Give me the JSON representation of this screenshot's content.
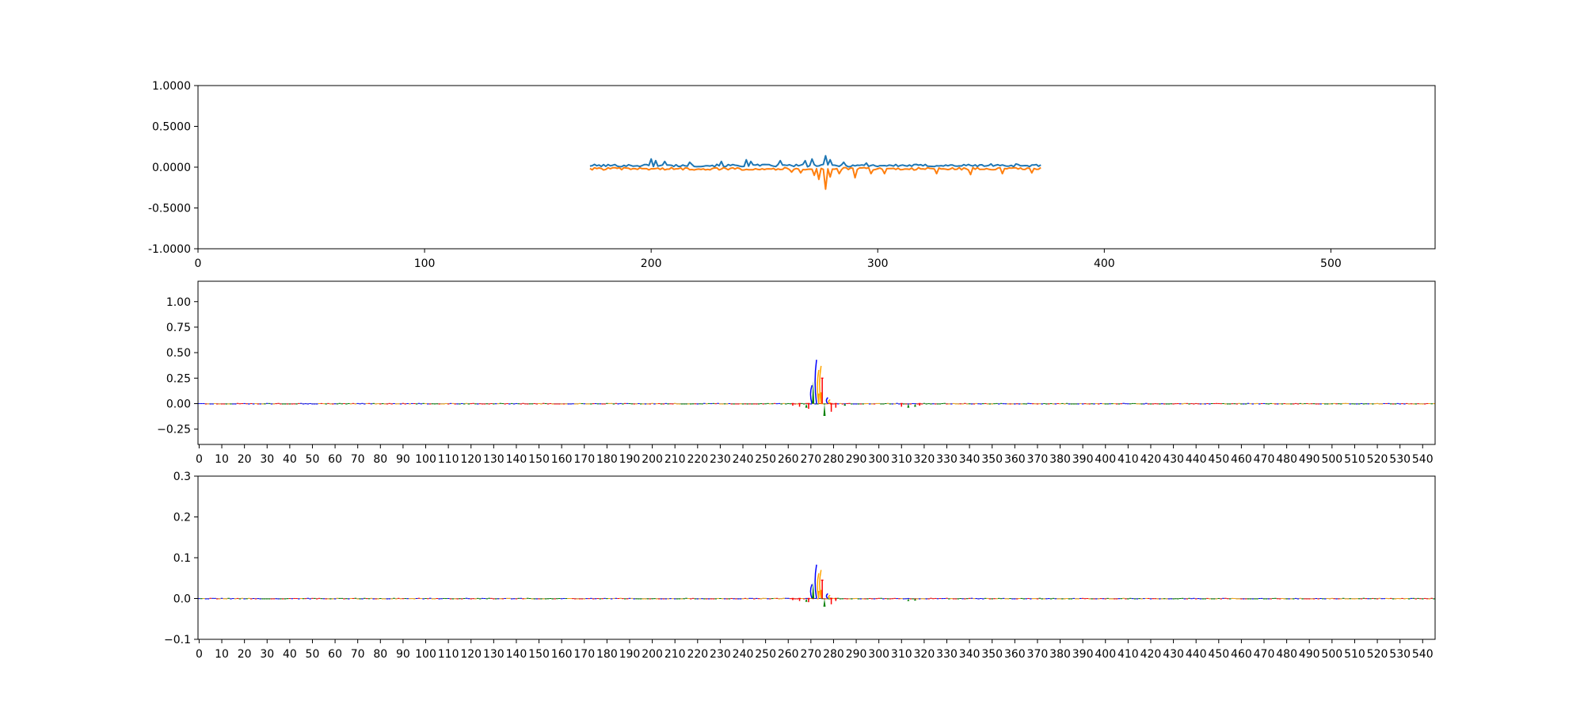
{
  "colors": {
    "series_positive": "#1f77b4",
    "series_negative": "#ff7f0e",
    "base_A": "#008000",
    "base_C": "#0000ff",
    "base_G": "#ffa500",
    "base_T": "#ff0000",
    "axis": "#000000"
  },
  "chart_data": [
    {
      "type": "line",
      "xlim": [
        0,
        546
      ],
      "ylim": [
        -1.0,
        1.0
      ],
      "x_ticks": [
        0,
        100,
        200,
        300,
        400,
        500
      ],
      "y_ticks": [
        -1.0,
        -0.5,
        0.0,
        0.5,
        1.0
      ],
      "x_tick_labels": [
        "0",
        "100",
        "200",
        "300",
        "400",
        "500"
      ],
      "y_tick_labels": [
        "-1.0000",
        "-0.5000",
        "0.0000",
        "0.5000",
        "1.0000"
      ],
      "grid": false,
      "series": [
        {
          "color": "#1f77b4",
          "x_start": 173,
          "x_end": 372,
          "baseline": 0.02,
          "noise": 0.015,
          "peaks": [
            [
              200,
              0.1
            ],
            [
              202,
              0.08
            ],
            [
              206,
              0.07
            ],
            [
              217,
              0.06
            ],
            [
              231,
              0.07
            ],
            [
              242,
              0.09
            ],
            [
              244,
              0.07
            ],
            [
              257,
              0.08
            ],
            [
              268,
              0.08
            ],
            [
              271,
              0.1
            ],
            [
              277,
              0.14
            ],
            [
              279,
              0.09
            ],
            [
              285,
              0.06
            ],
            [
              295,
              0.05
            ],
            [
              350,
              0.04
            ],
            [
              361,
              0.04
            ]
          ]
        },
        {
          "color": "#ff7f0e",
          "x_start": 173,
          "x_end": 372,
          "baseline": -0.02,
          "noise": 0.015,
          "peaks": [
            [
              262,
              -0.06
            ],
            [
              266,
              -0.07
            ],
            [
              272,
              -0.1
            ],
            [
              274,
              -0.15
            ],
            [
              277,
              -0.27
            ],
            [
              279,
              -0.12
            ],
            [
              283,
              -0.08
            ],
            [
              290,
              -0.13
            ],
            [
              297,
              -0.08
            ],
            [
              303,
              -0.08
            ],
            [
              326,
              -0.08
            ],
            [
              341,
              -0.09
            ],
            [
              355,
              -0.08
            ],
            [
              368,
              -0.07
            ]
          ]
        }
      ]
    },
    {
      "type": "bar",
      "subtype": "sequence-logo",
      "xlim": [
        -0.5,
        545.5
      ],
      "ylim": [
        -0.4,
        1.2
      ],
      "y_ticks": [
        -0.25,
        0.0,
        0.25,
        0.5,
        0.75,
        1.0
      ],
      "y_tick_labels": [
        "−0.25",
        "0.00",
        "0.25",
        "0.50",
        "0.75",
        "1.00"
      ],
      "x_tick_step": 10,
      "x_tick_max": 540,
      "noise": 0.006,
      "grid": false,
      "letters": [
        {
          "x": 262,
          "base": "T",
          "value": -0.02
        },
        {
          "x": 265,
          "base": "T",
          "value": -0.03
        },
        {
          "x": 268,
          "base": "A",
          "value": -0.04
        },
        {
          "x": 269,
          "base": "T",
          "value": -0.05
        },
        {
          "x": 270,
          "base": "C",
          "value": 0.18
        },
        {
          "x": 271,
          "base": "A",
          "value": 0.22
        },
        {
          "x": 272,
          "base": "C",
          "value": 0.43
        },
        {
          "x": 273,
          "base": "G",
          "value": 0.33
        },
        {
          "x": 274,
          "base": "G",
          "value": 0.37
        },
        {
          "x": 275,
          "base": "T",
          "value": 0.25
        },
        {
          "x": 276,
          "base": "A",
          "value": -0.12
        },
        {
          "x": 277,
          "base": "C",
          "value": 0.06
        },
        {
          "x": 278,
          "base": "G",
          "value": 0.04
        },
        {
          "x": 279,
          "base": "T",
          "value": -0.08
        },
        {
          "x": 281,
          "base": "T",
          "value": -0.04
        },
        {
          "x": 285,
          "base": "A",
          "value": -0.02
        },
        {
          "x": 310,
          "base": "T",
          "value": -0.03
        },
        {
          "x": 313,
          "base": "A",
          "value": -0.04
        },
        {
          "x": 316,
          "base": "A",
          "value": -0.03
        },
        {
          "x": 318,
          "base": "T",
          "value": -0.02
        }
      ]
    },
    {
      "type": "bar",
      "subtype": "sequence-logo",
      "xlim": [
        -0.5,
        545.5
      ],
      "ylim": [
        -0.1,
        0.3
      ],
      "y_ticks": [
        -0.1,
        0.0,
        0.1,
        0.2,
        0.3
      ],
      "y_tick_labels": [
        "−0.1",
        "0.0",
        "0.1",
        "0.2",
        "0.3"
      ],
      "x_tick_step": 10,
      "x_tick_max": 540,
      "noise": 0.0015,
      "grid": false,
      "letters": [
        {
          "x": 262,
          "base": "T",
          "value": -0.004
        },
        {
          "x": 265,
          "base": "T",
          "value": -0.006
        },
        {
          "x": 268,
          "base": "A",
          "value": -0.008
        },
        {
          "x": 269,
          "base": "T",
          "value": -0.009
        },
        {
          "x": 270,
          "base": "C",
          "value": 0.035
        },
        {
          "x": 271,
          "base": "A",
          "value": 0.04
        },
        {
          "x": 272,
          "base": "C",
          "value": 0.083
        },
        {
          "x": 273,
          "base": "G",
          "value": 0.062
        },
        {
          "x": 274,
          "base": "G",
          "value": 0.07
        },
        {
          "x": 275,
          "base": "T",
          "value": 0.045
        },
        {
          "x": 276,
          "base": "A",
          "value": -0.02
        },
        {
          "x": 277,
          "base": "C",
          "value": 0.012
        },
        {
          "x": 278,
          "base": "G",
          "value": 0.008
        },
        {
          "x": 279,
          "base": "T",
          "value": -0.014
        },
        {
          "x": 281,
          "base": "T",
          "value": -0.006
        },
        {
          "x": 313,
          "base": "A",
          "value": -0.006
        },
        {
          "x": 316,
          "base": "A",
          "value": -0.005
        }
      ]
    }
  ]
}
